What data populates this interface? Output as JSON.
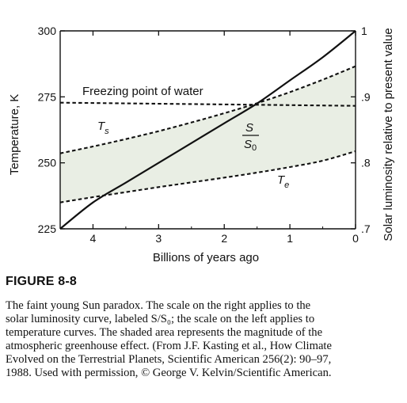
{
  "figure": {
    "number": "FIGURE 8-8",
    "caption_lines": [
      "The faint young Sun paradox. The scale on the right applies to the",
      "solar luminosity curve, labeled S/S₀; the scale on the left applies to",
      "temperature curves. The shaded area represents the magnitude of the",
      "atmospheric greenhouse effect. (From J.F. Kasting et al., How Climate",
      "Evolved on the Terrestrial Planets, Scientific American 256(2): 90–97,",
      "1988. Used with permission, © George V. Kelvin/Scientific American."
    ]
  },
  "chart_data": {
    "type": "line",
    "title": "",
    "xlabel": "Billions of years ago",
    "ylabel_left": "Temperature, K",
    "ylabel_right": "Solar luminosity relative to present value",
    "xlim": [
      4.5,
      0
    ],
    "ylim_left": [
      225,
      300
    ],
    "ylim_right": [
      0.7,
      1.0
    ],
    "x_ticks": [
      {
        "value": 4,
        "label": "4"
      },
      {
        "value": 3,
        "label": "3"
      },
      {
        "value": 2,
        "label": "2"
      },
      {
        "value": 1,
        "label": "1"
      },
      {
        "value": 0,
        "label": "0"
      }
    ],
    "y_ticks_left": [
      {
        "value": 225,
        "label": "225"
      },
      {
        "value": 250,
        "label": "250"
      },
      {
        "value": 275,
        "label": "275"
      },
      {
        "value": 300,
        "label": "300"
      }
    ],
    "y_ticks_right": [
      {
        "value": 0.7,
        "label": ".7"
      },
      {
        "value": 0.8,
        "label": ".8"
      },
      {
        "value": 0.9,
        "label": ".9"
      },
      {
        "value": 1.0,
        "label": "1"
      }
    ],
    "grid": false,
    "shade_color": "#e9eee4",
    "shaded_region": "between Ts and Te",
    "series": [
      {
        "name": "Ts",
        "axis": "left",
        "style": "dashed",
        "x": [
          4.5,
          4.0,
          3.5,
          3.0,
          2.5,
          2.0,
          1.5,
          1.0,
          0.5,
          0.0
        ],
        "y": [
          253.6,
          256.2,
          259.0,
          262.0,
          265.3,
          268.8,
          272.6,
          276.8,
          281.5,
          286.6
        ]
      },
      {
        "name": "Te",
        "axis": "left",
        "style": "dashed",
        "x": [
          4.5,
          4.0,
          3.5,
          3.0,
          2.5,
          2.0,
          1.5,
          1.0,
          0.5,
          0.0
        ],
        "y": [
          235.0,
          237.0,
          238.9,
          240.8,
          242.6,
          244.4,
          246.3,
          248.4,
          250.8,
          254.4
        ]
      },
      {
        "name": "S/S0",
        "axis": "right",
        "style": "solid",
        "x": [
          4.5,
          4.0,
          3.5,
          3.0,
          2.5,
          2.0,
          1.5,
          1.0,
          0.5,
          0.0
        ],
        "y": [
          0.7,
          0.74,
          0.77,
          0.8,
          0.83,
          0.86,
          0.89,
          0.925,
          0.96,
          1.0
        ]
      },
      {
        "name": "Freezing point of water",
        "axis": "left",
        "style": "dashed",
        "x": [
          4.5,
          0.0
        ],
        "y": [
          272.8,
          271.6
        ]
      }
    ],
    "annotations": {
      "freezing": "Freezing point of water",
      "ts_main": "T",
      "ts_sub": "s",
      "te_main": "T",
      "te_sub": "e",
      "s_num": "S",
      "s_den_main": "S",
      "s_den_sub": "0"
    }
  }
}
